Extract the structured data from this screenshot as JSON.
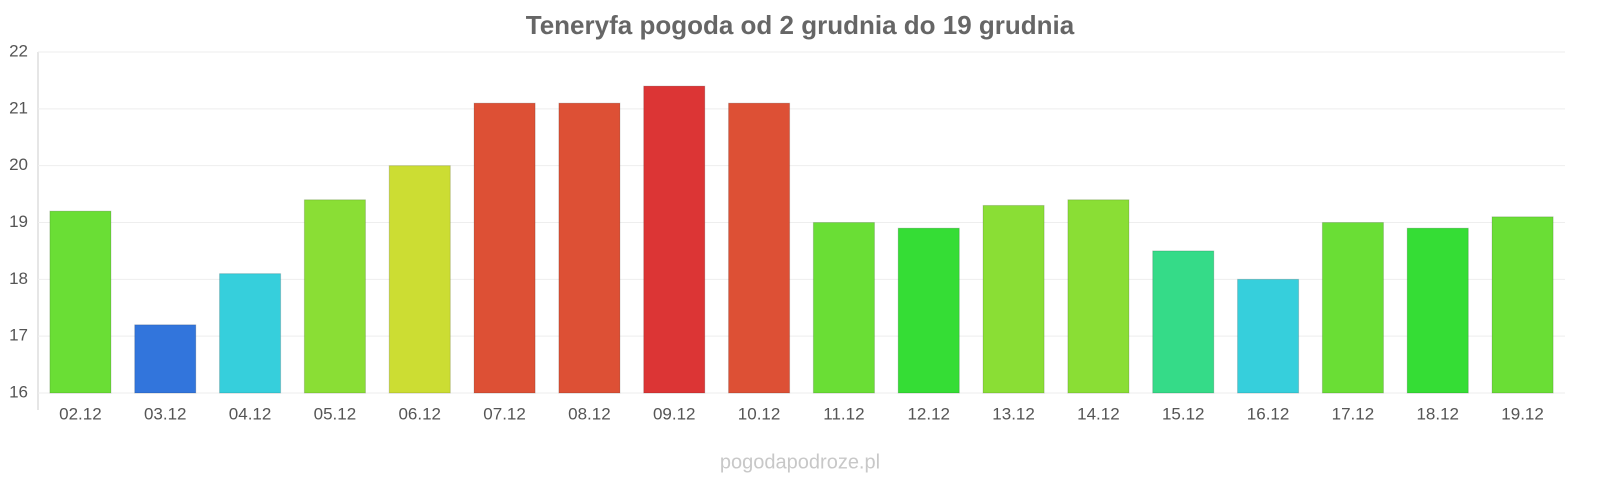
{
  "chart_data": {
    "type": "bar",
    "title": "Teneryfa pogoda od 2 grudnia do 19 grudnia",
    "categories": [
      "02.12",
      "03.12",
      "04.12",
      "05.12",
      "06.12",
      "07.12",
      "08.12",
      "09.12",
      "10.12",
      "11.12",
      "12.12",
      "13.12",
      "14.12",
      "15.12",
      "16.12",
      "17.12",
      "18.12",
      "19.12"
    ],
    "values": [
      19.2,
      17.2,
      18.1,
      19.4,
      20.0,
      21.1,
      21.1,
      21.4,
      21.1,
      19.0,
      18.9,
      19.3,
      19.4,
      18.5,
      18.0,
      19.0,
      18.9,
      19.1
    ],
    "colors": [
      "#6ade35",
      "#3275dc",
      "#36cfdc",
      "#8ade35",
      "#ccdd33",
      "#dd5035",
      "#dd5035",
      "#dc3535",
      "#dd5035",
      "#6ade35",
      "#35dd35",
      "#8ade35",
      "#8ade35",
      "#35db88",
      "#36cfdc",
      "#6ade35",
      "#35dd35",
      "#6ade35"
    ],
    "ylim": [
      16,
      22
    ],
    "yticks": [
      16,
      17,
      18,
      19,
      20,
      21,
      22
    ],
    "grid": true,
    "source": "pogodapodroze.pl"
  }
}
